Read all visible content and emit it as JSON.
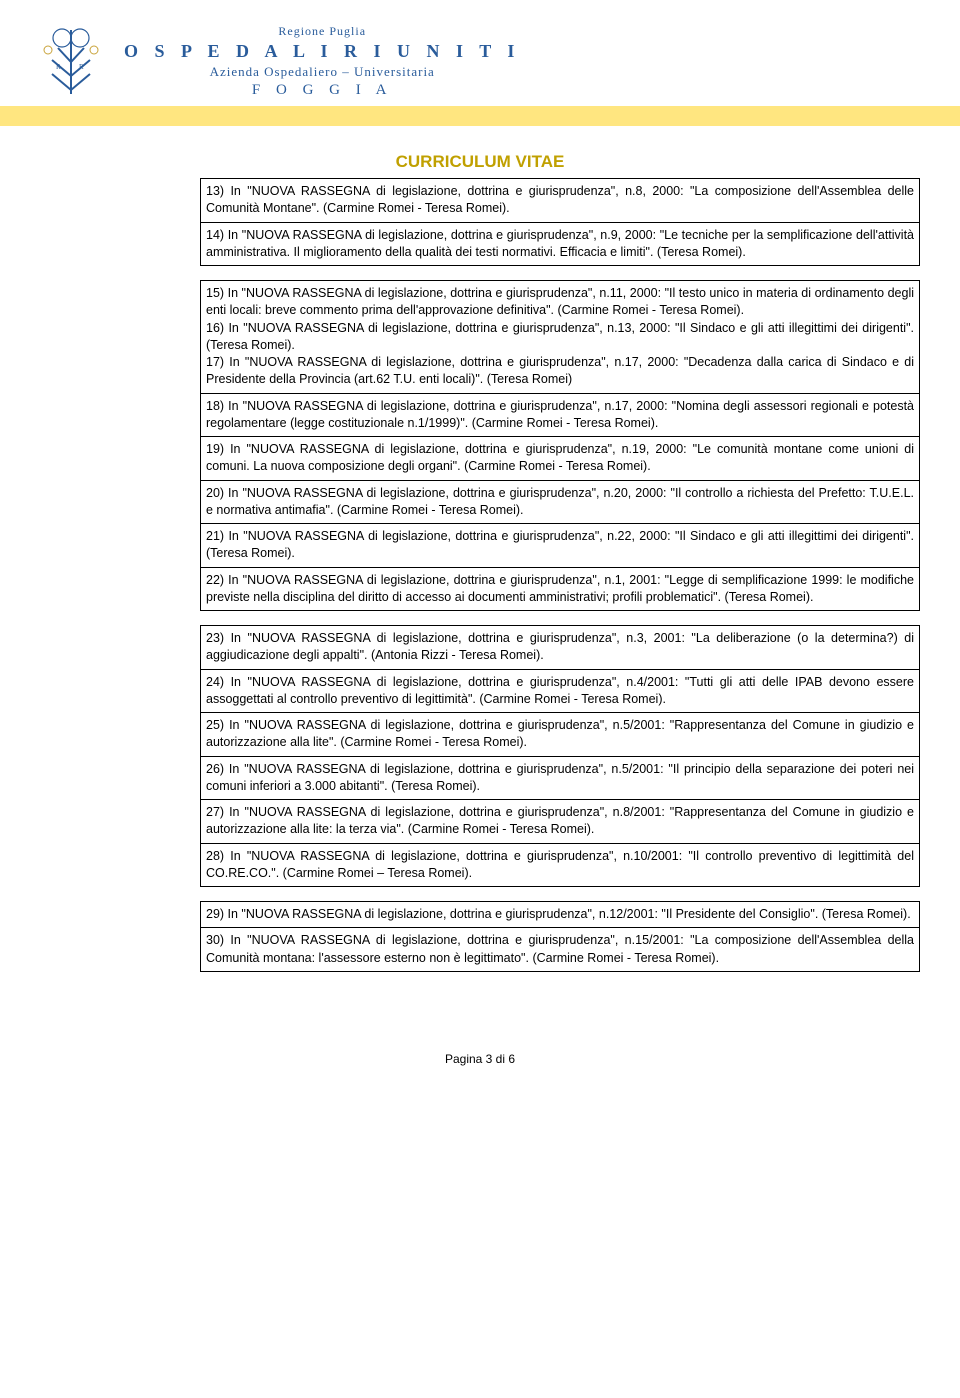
{
  "letterhead": {
    "region": "Regione Puglia",
    "hospital": "O S P E D A L I   R I U N I T I",
    "subtitle": "Azienda Ospedaliero – Universitaria",
    "city": "F O G G I A",
    "seal_colors": {
      "blue": "#2a5c9b",
      "gold": "#c9a33a"
    }
  },
  "band_color": "#ffe680",
  "title": "CURRICULUM VITAE",
  "title_color": "#c0a000",
  "blocks": [
    {
      "cells": [
        "13) In \"NUOVA RASSEGNA di legislazione, dottrina e giurisprudenza\", n.8, 2000: \"La composizione dell'Assemblea delle Comunità Montane\". (Carmine Romei - Teresa Romei).",
        "14) In \"NUOVA RASSEGNA di legislazione, dottrina e giurisprudenza\", n.9, 2000: \"Le tecniche per la semplificazione dell'attività amministrativa. Il miglioramento della qualità dei testi normativi. Efficacia e limiti\". (Teresa Romei)."
      ]
    },
    {
      "cells": [
        "15) In \"NUOVA RASSEGNA di legislazione, dottrina e giurisprudenza\", n.11, 2000: \"Il testo unico in materia di ordinamento degli enti locali: breve commento prima dell'approvazione definitiva\". (Carmine Romei - Teresa Romei).\n16) In \"NUOVA RASSEGNA di legislazione, dottrina e giurisprudenza\", n.13, 2000: \"Il Sindaco e gli atti illegittimi dei dirigenti\". (Teresa Romei).\n17) In \"NUOVA RASSEGNA di legislazione, dottrina e giurisprudenza\", n.17, 2000: \"Decadenza dalla carica di Sindaco e di Presidente della Provincia (art.62 T.U. enti locali)\". (Teresa Romei)",
        "18) In \"NUOVA RASSEGNA di legislazione, dottrina e giurisprudenza\", n.17, 2000: \"Nomina degli assessori regionali e potestà regolamentare (legge costituzionale n.1/1999)\". (Carmine Romei - Teresa Romei).",
        "19) In \"NUOVA RASSEGNA di legislazione, dottrina e giurisprudenza\", n.19, 2000: \"Le comunità montane come unioni di comuni. La nuova composizione degli organi\". (Carmine Romei - Teresa Romei).",
        "20) In \"NUOVA RASSEGNA di legislazione, dottrina e giurisprudenza\", n.20, 2000: \"Il controllo a richiesta del Prefetto: T.U.E.L. e normativa antimafia\". (Carmine Romei - Teresa Romei).",
        "21) In \"NUOVA RASSEGNA di legislazione, dottrina e giurisprudenza\", n.22, 2000: \"Il Sindaco e gli atti illegittimi dei dirigenti\". (Teresa Romei).",
        "22) In \"NUOVA RASSEGNA di legislazione, dottrina e giurisprudenza\", n.1, 2001: \"Legge di semplificazione 1999: le modifiche previste nella disciplina del diritto di accesso ai documenti amministrativi; profili problematici\". (Teresa Romei)."
      ]
    },
    {
      "cells": [
        "23) In \"NUOVA RASSEGNA di legislazione, dottrina e giurisprudenza\", n.3, 2001: \"La deliberazione (o la determina?) di aggiudicazione degli appalti\". (Antonia Rizzi - Teresa Romei).",
        "24) In \"NUOVA RASSEGNA di legislazione, dottrina e giurisprudenza\", n.4/2001: \"Tutti gli atti delle IPAB devono essere assoggettati al controllo preventivo di legittimità\". (Carmine Romei - Teresa Romei).",
        "25) In \"NUOVA RASSEGNA di legislazione, dottrina e giurisprudenza\", n.5/2001: \"Rappresentanza del Comune in giudizio e autorizzazione alla lite\". (Carmine Romei - Teresa Romei).",
        "26) In \"NUOVA RASSEGNA di legislazione, dottrina e giurisprudenza\", n.5/2001: \"Il principio della separazione dei poteri nei comuni inferiori a 3.000 abitanti\". (Teresa Romei).",
        "27) In \"NUOVA RASSEGNA di legislazione, dottrina e giurisprudenza\", n.8/2001: \"Rappresentanza del Comune in giudizio e autorizzazione alla lite: la terza via\". (Carmine Romei - Teresa Romei).",
        "28) In \"NUOVA RASSEGNA di legislazione, dottrina e giurisprudenza\", n.10/2001: \"Il controllo preventivo di legittimità del CO.RE.CO.\". (Carmine Romei – Teresa Romei)."
      ]
    },
    {
      "cells": [
        "29) In \"NUOVA RASSEGNA di legislazione, dottrina e giurisprudenza\", n.12/2001: \"Il Presidente del Consiglio\". (Teresa Romei).",
        "30) In \"NUOVA RASSEGNA di legislazione, dottrina e giurisprudenza\", n.15/2001: \"La composizione dell'Assemblea della Comunità montana: l'assessore esterno non è legittimato\". (Carmine Romei - Teresa Romei)."
      ]
    }
  ],
  "footer": "Pagina 3 di 6"
}
